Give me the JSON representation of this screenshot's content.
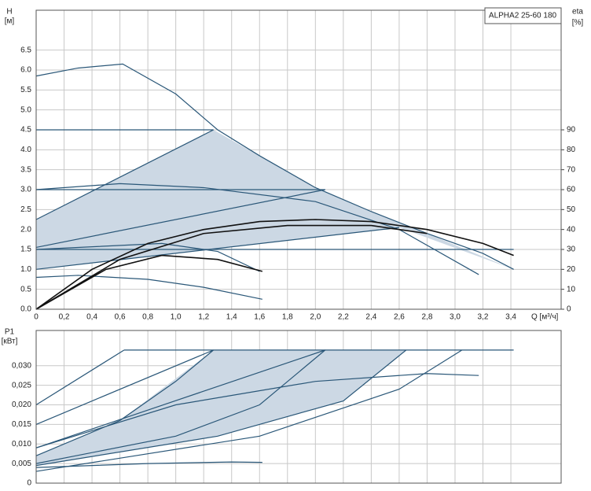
{
  "chart_data": [
    {
      "type": "line",
      "title": "ALPHA2 25-60 180",
      "y_label": "H",
      "y_unit": "[м]",
      "y2_label": "eta",
      "y2_unit": "[%]",
      "x_label": "Q [м³/ч]",
      "xlim": [
        0,
        3.76
      ],
      "ylim": [
        0,
        7.5
      ],
      "y2lim": [
        0,
        150
      ],
      "grid": true,
      "xticks": [
        {
          "value": 0,
          "label": "0"
        },
        {
          "value": 0.2,
          "label": "0,2"
        },
        {
          "value": 0.4,
          "label": "0,4"
        },
        {
          "value": 0.6,
          "label": "0,6"
        },
        {
          "value": 0.8,
          "label": "0,8"
        },
        {
          "value": 1.0,
          "label": "1,0"
        },
        {
          "value": 1.2,
          "label": "1,2"
        },
        {
          "value": 1.4,
          "label": "1,4"
        },
        {
          "value": 1.6,
          "label": "1,6"
        },
        {
          "value": 1.8,
          "label": "1,8"
        },
        {
          "value": 2.0,
          "label": "2,0"
        },
        {
          "value": 2.2,
          "label": "2,2"
        },
        {
          "value": 2.4,
          "label": "2,4"
        },
        {
          "value": 2.6,
          "label": "2,6"
        },
        {
          "value": 2.8,
          "label": "2,8"
        },
        {
          "value": 3.0,
          "label": "3,0"
        },
        {
          "value": 3.2,
          "label": "3,2"
        },
        {
          "value": 3.4,
          "label": "3,4"
        }
      ],
      "yticks": [
        {
          "value": 0,
          "label": "0.0"
        },
        0.5,
        {
          "value": 1,
          "label": "1.0"
        },
        1.5,
        {
          "value": 2,
          "label": "2.0"
        },
        2.5,
        {
          "value": 3,
          "label": "3.0"
        },
        3.5,
        {
          "value": 4,
          "label": "4.0"
        },
        4.5,
        {
          "value": 5,
          "label": "5.0"
        },
        5.5,
        {
          "value": 6,
          "label": "6.0"
        },
        6.5
      ],
      "y2ticks": [
        0,
        10,
        20,
        30,
        40,
        50,
        60,
        70,
        80,
        90
      ],
      "areas": [
        {
          "color": "#ccd8e4",
          "x": [
            0,
            1.27,
            2.0,
            2.4,
            2.8,
            3.42,
            2.6,
            0
          ],
          "values": [
            2.25,
            4.5,
            3.05,
            2.45,
            1.9,
            1.0,
            2.05,
            1.0
          ]
        }
      ],
      "series": [
        {
          "color": "#2a5778",
          "x": [
            0,
            0.3,
            0.62,
            1.0,
            1.3,
            1.6,
            2.0,
            2.4,
            2.8,
            3.2,
            3.42
          ],
          "values": [
            5.85,
            6.05,
            6.15,
            5.4,
            4.5,
            3.85,
            3.05,
            2.45,
            1.9,
            1.4,
            1.0
          ]
        },
        {
          "color": "#2a5778",
          "x": [
            0,
            1.27
          ],
          "values": [
            2.25,
            4.5
          ]
        },
        {
          "color": "#2a5778",
          "x": [
            0,
            1.27
          ],
          "values": [
            4.5,
            4.5
          ]
        },
        {
          "color": "#2a5778",
          "x": [
            0,
            2.07
          ],
          "values": [
            1.55,
            3.0
          ]
        },
        {
          "color": "#2a5778",
          "x": [
            0,
            2.07
          ],
          "values": [
            3.0,
            3.0
          ]
        },
        {
          "color": "#2a5778",
          "x": [
            0,
            2.6
          ],
          "values": [
            1.0,
            2.05
          ]
        },
        {
          "color": "#2a5778",
          "x": [
            0,
            3.42
          ],
          "values": [
            1.5,
            1.5
          ]
        },
        {
          "color": "#2a5778",
          "x": [
            0,
            0.6,
            1.2,
            2.0,
            2.6,
            3.17
          ],
          "values": [
            3.0,
            3.15,
            3.05,
            2.7,
            2.0,
            0.87
          ]
        },
        {
          "color": "#2a5778",
          "x": [
            0,
            0.9,
            1.3,
            1.6
          ],
          "values": [
            1.5,
            1.65,
            1.45,
            0.95
          ]
        },
        {
          "color": "#2a5778",
          "x": [
            0,
            0.3,
            0.8,
            1.2,
            1.62
          ],
          "values": [
            0.8,
            0.85,
            0.75,
            0.55,
            0.25
          ]
        },
        {
          "color": "#111111",
          "axis": "y2",
          "x": [
            0,
            0.4,
            0.8,
            1.2,
            1.6,
            2.0,
            2.4,
            2.8,
            3.2,
            3.42
          ],
          "values": [
            0,
            20,
            33,
            40,
            44,
            45,
            44,
            40,
            33,
            27
          ]
        },
        {
          "color": "#111111",
          "axis": "y2",
          "x": [
            0,
            0.6,
            1.2,
            1.8,
            2.4,
            2.8
          ],
          "values": [
            0,
            25,
            38,
            42,
            42,
            38
          ]
        },
        {
          "color": "#111111",
          "axis": "y2",
          "x": [
            0,
            0.5,
            0.9,
            1.3,
            1.62
          ],
          "values": [
            0,
            20,
            27,
            25,
            19
          ]
        }
      ]
    },
    {
      "type": "line",
      "y_label": "P1",
      "y_unit": "[кВт]",
      "xlim": [
        0,
        3.76
      ],
      "ylim": [
        0,
        0.039
      ],
      "grid": true,
      "xticks": [
        0,
        0.2,
        0.4,
        0.6,
        0.8,
        1.0,
        1.2,
        1.4,
        1.6,
        1.8,
        2.0,
        2.2,
        2.4,
        2.6,
        2.8,
        3.0,
        3.2,
        3.4
      ],
      "yticks": [
        0,
        {
          "value": 0.005,
          "label": "0,005"
        },
        {
          "value": 0.01,
          "label": "0,010"
        },
        {
          "value": 0.015,
          "label": "0,015"
        },
        {
          "value": 0.02,
          "label": "0,020"
        },
        {
          "value": 0.025,
          "label": "0,025"
        },
        {
          "value": 0.03,
          "label": "0,030"
        }
      ],
      "areas": [
        {
          "color": "#ccd8e4",
          "x": [
            0,
            0.6,
            1.27,
            2.65,
            2.2,
            1.3,
            0
          ],
          "values": [
            0.007,
            0.016,
            0.034,
            0.034,
            0.021,
            0.012,
            0.0045
          ]
        }
      ],
      "series": [
        {
          "color": "#2a5778",
          "x": [
            0.63,
            3.42
          ],
          "values": [
            0.034,
            0.034
          ]
        },
        {
          "color": "#2a5778",
          "x": [
            0,
            0.63
          ],
          "values": [
            0.02,
            0.034
          ]
        },
        {
          "color": "#2a5778",
          "x": [
            0,
            1.27
          ],
          "values": [
            0.015,
            0.034
          ]
        },
        {
          "color": "#2a5778",
          "x": [
            0,
            2.07
          ],
          "values": [
            0.009,
            0.034
          ]
        },
        {
          "color": "#2a5778",
          "x": [
            0,
            0.6,
            1.0,
            1.27
          ],
          "values": [
            0.007,
            0.016,
            0.026,
            0.034
          ]
        },
        {
          "color": "#2a5778",
          "x": [
            0,
            1.0,
            1.6,
            2.07
          ],
          "values": [
            0.005,
            0.012,
            0.02,
            0.034
          ]
        },
        {
          "color": "#2a5778",
          "x": [
            0,
            1.3,
            2.2,
            2.65
          ],
          "values": [
            0.0045,
            0.012,
            0.021,
            0.034
          ]
        },
        {
          "color": "#2a5778",
          "x": [
            0,
            1.6,
            2.6,
            3.05
          ],
          "values": [
            0.003,
            0.012,
            0.024,
            0.034
          ]
        },
        {
          "color": "#2a5778",
          "x": [
            0,
            1.0,
            2.0,
            2.8,
            3.17
          ],
          "values": [
            0.009,
            0.02,
            0.026,
            0.028,
            0.0275
          ]
        },
        {
          "color": "#2a5778",
          "x": [
            0,
            0.8,
            1.4,
            1.62
          ],
          "values": [
            0.004,
            0.005,
            0.0054,
            0.0053
          ]
        }
      ]
    }
  ]
}
